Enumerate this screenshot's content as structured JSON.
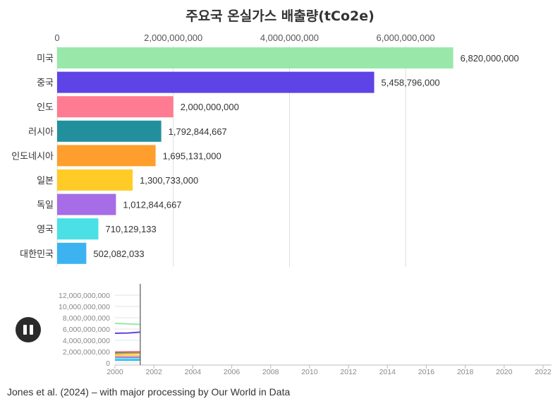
{
  "title": "주요국 온실가스 배출량(tCo2e)",
  "source": "Jones et al. (2024) – with major processing by Our World in Data",
  "controls": {
    "play_state": "paused",
    "pause_icon": "pause-icon"
  },
  "colors": {
    "미국": "#9ae8a9",
    "중국": "#5e43e6",
    "인도": "#ff7b92",
    "러시아": "#22909c",
    "인도네시아": "#ff9e2c",
    "일본": "#ffcc27",
    "독일": "#a66de6",
    "영국": "#4ae0e6",
    "대한민국": "#3cb3f0"
  },
  "chart_data": [
    {
      "type": "bar",
      "orientation": "horizontal",
      "title": "주요국 온실가스 배출량(tCo2e)",
      "categories": [
        "미국",
        "중국",
        "인도",
        "러시아",
        "인도네시아",
        "일본",
        "독일",
        "영국",
        "대한민국"
      ],
      "values": [
        6820000000,
        5458796000,
        2000000000,
        1792844667,
        1695131000,
        1300733000,
        1012844667,
        710129133,
        502082033
      ],
      "value_labels": [
        "6,820,000,000",
        "5,458,796,000",
        "2,000,000,000",
        "1,792,844,667",
        "1,695,131,000",
        "1,300,733,000",
        "1,012,844,667",
        "710,129,133",
        "502,082,033"
      ],
      "xlim": [
        0,
        8000000000
      ],
      "x_ticks": [
        0,
        2000000000,
        4000000000,
        6000000000
      ],
      "x_tick_labels": [
        "0",
        "2,000,000,000",
        "4,000,000,000",
        "6,000,000,000"
      ],
      "axis_position": "top",
      "grid": true,
      "legend": "none"
    },
    {
      "type": "line",
      "x_ticks": [
        2000,
        2002,
        2004,
        2006,
        2008,
        2010,
        2012,
        2014,
        2016,
        2018,
        2020,
        2022
      ],
      "x_tick_labels": [
        "2000",
        "2002",
        "2004",
        "2006",
        "2008",
        "2010",
        "2012",
        "2014",
        "2016",
        "2018",
        "2020",
        "2022"
      ],
      "xlim": [
        2000,
        2022
      ],
      "ylim": [
        0,
        12000000000
      ],
      "y_ticks": [
        0,
        2000000000,
        4000000000,
        6000000000,
        8000000000,
        10000000000,
        12000000000
      ],
      "y_tick_labels": [
        "0",
        "2,000,000,000",
        "4,000,000,000",
        "6,000,000,000",
        "8,000,000,000",
        "10,000,000,000",
        "12,000,000,000"
      ],
      "current_year": 2001.3,
      "grid": true,
      "series": [
        {
          "name": "미국",
          "x": [
            2000,
            2000.7,
            2001.3
          ],
          "y": [
            7000000000,
            6900000000,
            6820000000
          ]
        },
        {
          "name": "중국",
          "x": [
            2000,
            2000.7,
            2001.3
          ],
          "y": [
            5250000000,
            5300000000,
            5458796000
          ]
        },
        {
          "name": "인도",
          "x": [
            2000,
            2000.7,
            2001.3
          ],
          "y": [
            1950000000,
            1980000000,
            2000000000
          ]
        },
        {
          "name": "러시아",
          "x": [
            2000,
            2000.7,
            2001.3
          ],
          "y": [
            1780000000,
            1790000000,
            1792844667
          ]
        },
        {
          "name": "인도네시아",
          "x": [
            2000,
            2000.7,
            2001.3
          ],
          "y": [
            1600000000,
            1650000000,
            1695131000
          ]
        },
        {
          "name": "일본",
          "x": [
            2000,
            2000.7,
            2001.3
          ],
          "y": [
            1310000000,
            1305000000,
            1300733000
          ]
        },
        {
          "name": "독일",
          "x": [
            2000,
            2000.7,
            2001.3
          ],
          "y": [
            1030000000,
            1020000000,
            1012844667
          ]
        },
        {
          "name": "영국",
          "x": [
            2000,
            2000.7,
            2001.3
          ],
          "y": [
            720000000,
            715000000,
            710129133
          ]
        },
        {
          "name": "대한민국",
          "x": [
            2000,
            2000.7,
            2001.3
          ],
          "y": [
            480000000,
            490000000,
            502082033
          ]
        }
      ]
    }
  ]
}
